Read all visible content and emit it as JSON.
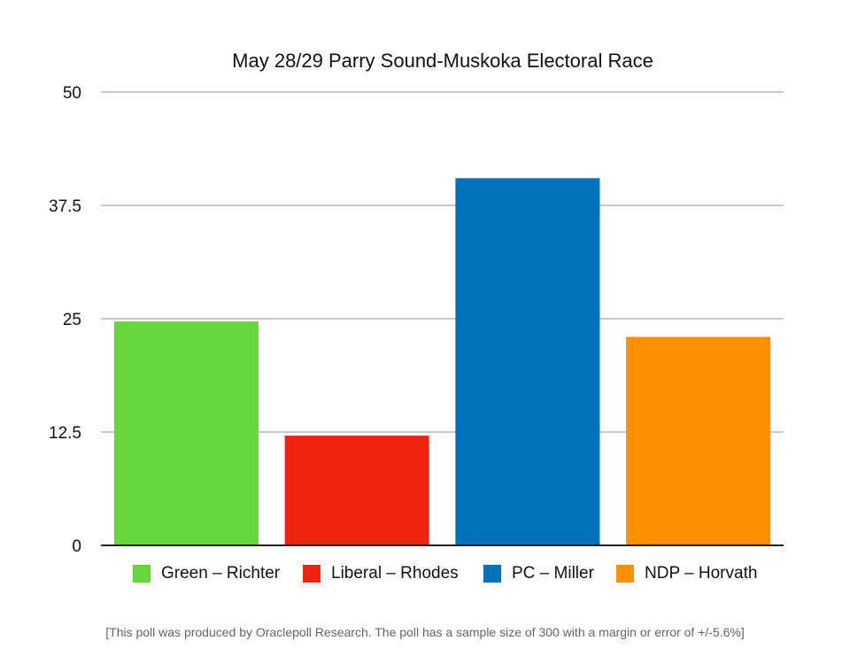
{
  "chart_data": {
    "type": "bar",
    "title": "May 28/29 Parry Sound-Muskoka Electoral Race",
    "categories": [
      "Green – Richter",
      "Liberal – Rhodes",
      "PC – Miller",
      "NDP – Horvath"
    ],
    "values": [
      24.7,
      12.1,
      40.5,
      23.0
    ],
    "colors": [
      "#66d63c",
      "#ee2311",
      "#0072bb",
      "#fb8f00"
    ],
    "ylim": [
      0,
      50
    ],
    "yticks": [
      "0",
      "12.5",
      "25",
      "37.5",
      "50"
    ],
    "grid": true,
    "legend": [
      "Green – Richter",
      "Liberal – Rhodes",
      "PC – Miller",
      "NDP – Horvath"
    ],
    "legend_position": "bottom"
  },
  "footnote": "[This poll was produced by Oraclepoll Research.  The poll has a sample size of 300 with a margin or error of +/-5.6%]"
}
